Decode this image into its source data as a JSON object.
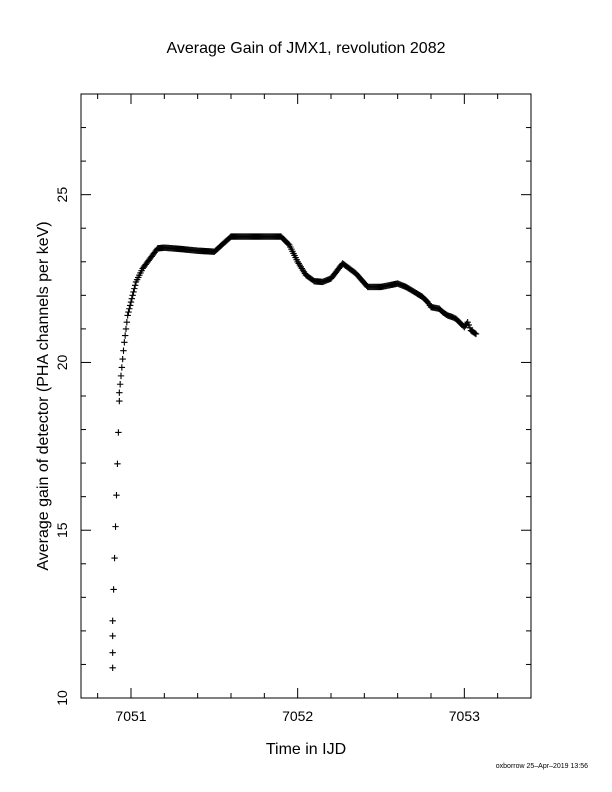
{
  "chart_data": {
    "type": "scatter",
    "title": "Average Gain of JMX1, revolution 2082",
    "xlabel": "Time in IJD",
    "ylabel": "Average gain of detector (PHA channels per keV)",
    "xlim": [
      7050.7,
      7053.4
    ],
    "ylim": [
      10,
      28
    ],
    "xticks": [
      7051,
      7052,
      7053
    ],
    "yticks": [
      10,
      15,
      20,
      25
    ],
    "marker": "plus",
    "footer": "oxborrow 25–Apr–2019 13:56",
    "series": [
      {
        "points": [
          [
            7050.89,
            10.9
          ],
          [
            7050.89,
            11.35
          ],
          [
            7050.89,
            11.85
          ],
          [
            7050.89,
            12.3
          ],
          [
            7050.93,
            18.85
          ],
          [
            7050.93,
            19.1
          ],
          [
            7050.935,
            19.35
          ],
          [
            7050.94,
            19.6
          ],
          [
            7050.945,
            19.85
          ],
          [
            7050.95,
            20.1
          ],
          [
            7050.955,
            20.35
          ],
          [
            7050.96,
            20.6
          ],
          [
            7050.965,
            20.8
          ],
          [
            7050.97,
            21.0
          ],
          [
            7050.975,
            21.2
          ],
          [
            7050.98,
            21.4
          ],
          [
            7050.99,
            21.6
          ],
          [
            7051.0,
            21.8
          ],
          [
            7051.01,
            22.0
          ],
          [
            7051.02,
            22.2
          ],
          [
            7051.03,
            22.4
          ],
          [
            7051.05,
            22.6
          ],
          [
            7051.07,
            22.8
          ],
          [
            7051.1,
            23.0
          ],
          [
            7051.13,
            23.2
          ],
          [
            7051.16,
            23.4
          ],
          [
            7051.2,
            23.42
          ],
          [
            7051.3,
            23.38
          ],
          [
            7051.4,
            23.33
          ],
          [
            7051.5,
            23.3
          ],
          [
            7051.6,
            23.75
          ],
          [
            7051.7,
            23.75
          ],
          [
            7051.8,
            23.75
          ],
          [
            7051.9,
            23.75
          ],
          [
            7051.95,
            23.5
          ],
          [
            7052.0,
            23.0
          ],
          [
            7052.05,
            22.6
          ],
          [
            7052.1,
            22.42
          ],
          [
            7052.15,
            22.4
          ],
          [
            7052.2,
            22.5
          ],
          [
            7052.27,
            22.95
          ],
          [
            7052.35,
            22.65
          ],
          [
            7052.42,
            22.25
          ],
          [
            7052.5,
            22.25
          ],
          [
            7052.55,
            22.3
          ],
          [
            7052.6,
            22.35
          ],
          [
            7052.65,
            22.25
          ],
          [
            7052.7,
            22.1
          ],
          [
            7052.75,
            21.95
          ],
          [
            7052.78,
            21.8
          ],
          [
            7052.8,
            21.65
          ],
          [
            7052.85,
            21.6
          ],
          [
            7052.87,
            21.5
          ],
          [
            7052.9,
            21.4
          ],
          [
            7052.93,
            21.35
          ],
          [
            7052.95,
            21.3
          ],
          [
            7052.98,
            21.15
          ],
          [
            7053.0,
            21.05
          ],
          [
            7053.02,
            21.2
          ],
          [
            7053.04,
            20.95
          ],
          [
            7053.07,
            20.85
          ]
        ]
      }
    ]
  }
}
